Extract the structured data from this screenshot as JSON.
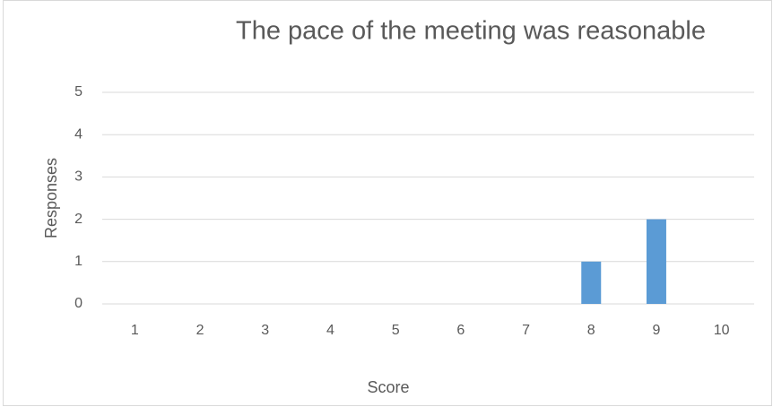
{
  "chart_data": {
    "type": "bar",
    "title": "The pace of the meeting was reasonable",
    "x_label": "Score",
    "y_label": "Responses",
    "categories": [
      "1",
      "2",
      "3",
      "4",
      "5",
      "6",
      "7",
      "8",
      "9",
      "10"
    ],
    "values": [
      0,
      0,
      0,
      0,
      0,
      0,
      0,
      1,
      2,
      0
    ],
    "color": "#5b9bd5",
    "ylim": [
      0,
      5
    ],
    "yticks": [
      0,
      1,
      2,
      3,
      4,
      5
    ],
    "grid": true
  }
}
